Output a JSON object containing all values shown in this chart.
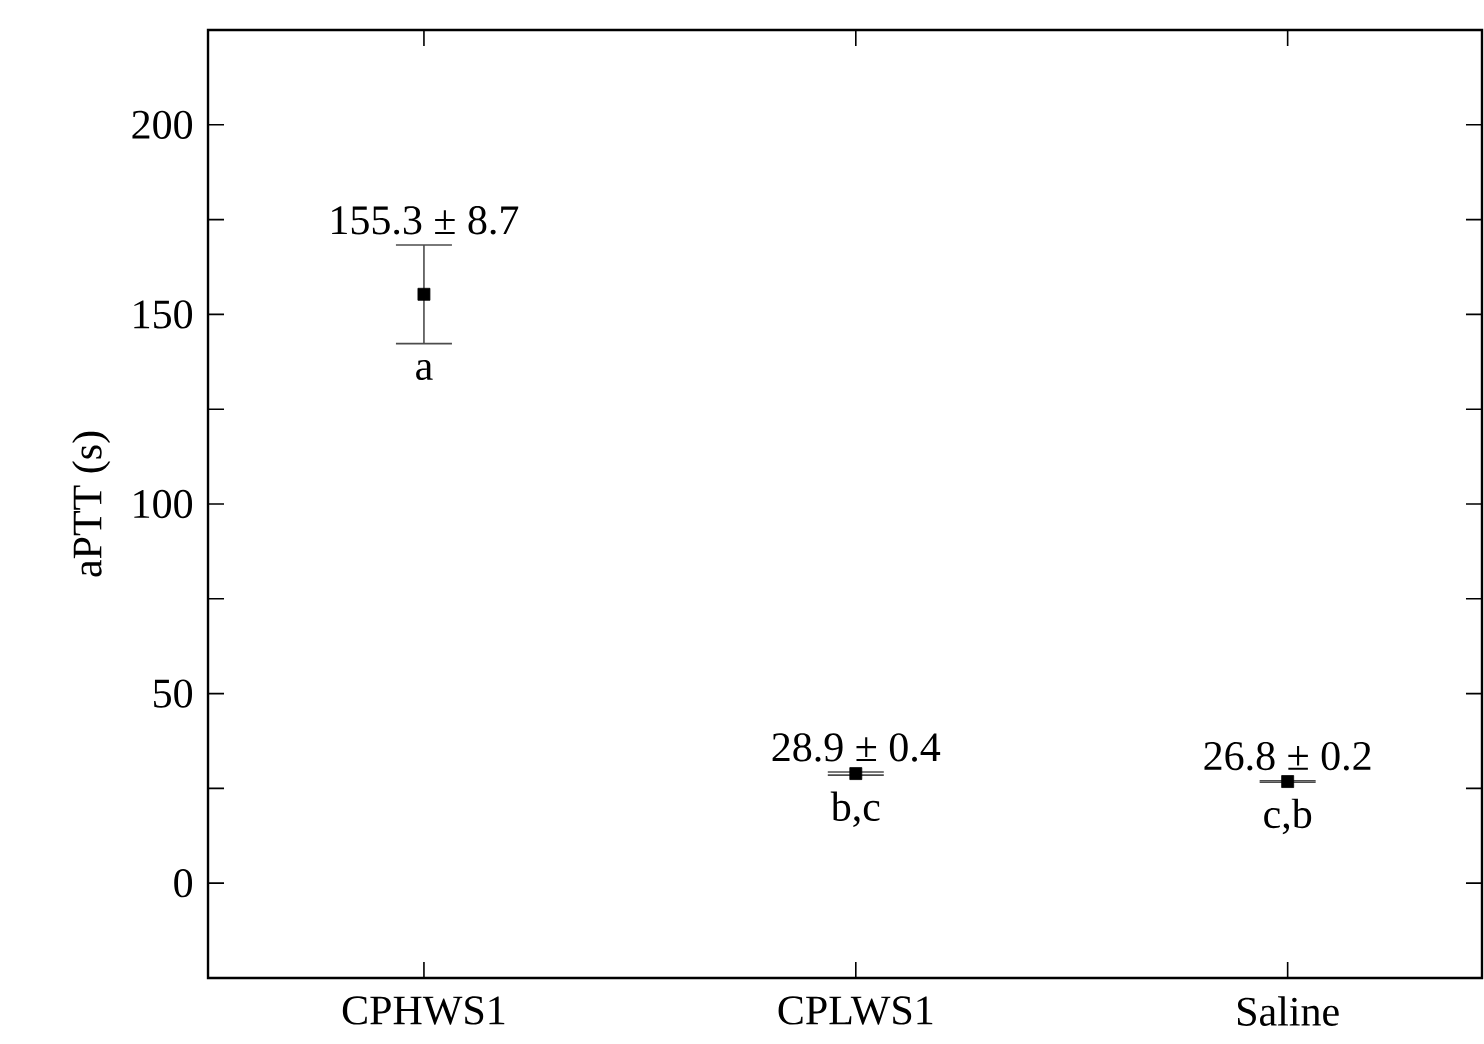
{
  "chart_data": {
    "type": "scatter",
    "ylabel": "aPTT (s)",
    "categories": [
      "CPHWS1",
      "CPLWS1",
      "Saline"
    ],
    "values": [
      155.3,
      28.9,
      26.8
    ],
    "errors": [
      13,
      0.4,
      0.2
    ],
    "value_labels": [
      "155.3 ± 8.7",
      "28.9 ± 0.4",
      "26.8 ± 0.2"
    ],
    "color": "#000000",
    "marker": "square",
    "ylim": [
      -25,
      225
    ],
    "yticks": [
      0,
      {
        "value": 25,
        "label": null
      },
      50,
      {
        "value": 75,
        "label": null
      },
      100,
      {
        "value": 125,
        "label": null
      },
      150,
      {
        "value": 175,
        "label": null
      },
      200
    ],
    "annotations": [
      "a",
      "b,c",
      "c,b"
    ]
  }
}
